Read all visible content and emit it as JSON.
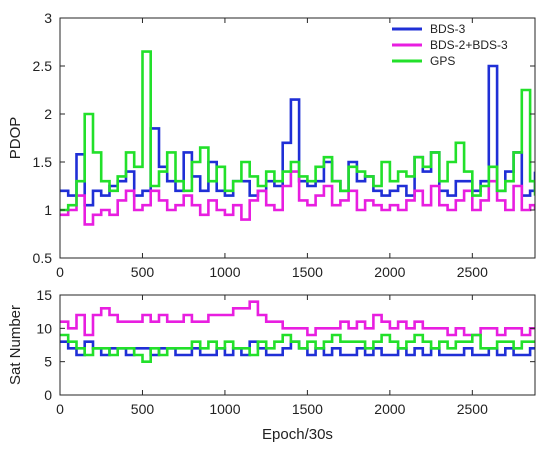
{
  "chart_data": [
    {
      "type": "line",
      "title": "",
      "xlabel": "",
      "ylabel": "PDOP",
      "xlim": [
        0,
        2880
      ],
      "ylim": [
        0.5,
        3
      ],
      "xticks": [
        0,
        500,
        1000,
        1500,
        2000,
        2500
      ],
      "yticks": [
        0.5,
        1,
        1.5,
        2,
        2.5,
        3
      ],
      "grid": false,
      "legend_position": "top-right",
      "series": [
        {
          "name": "BDS-3",
          "color": "#1f2fd6",
          "x": [
            0,
            50,
            100,
            150,
            200,
            250,
            300,
            350,
            400,
            450,
            500,
            550,
            600,
            650,
            700,
            750,
            800,
            850,
            900,
            950,
            1000,
            1050,
            1100,
            1150,
            1200,
            1250,
            1300,
            1350,
            1400,
            1450,
            1500,
            1550,
            1600,
            1650,
            1700,
            1750,
            1800,
            1850,
            1900,
            1950,
            2000,
            2050,
            2100,
            2150,
            2200,
            2250,
            2300,
            2350,
            2400,
            2450,
            2500,
            2550,
            2600,
            2650,
            2700,
            2750,
            2800,
            2850,
            2880
          ],
          "values": [
            1.2,
            1.15,
            1.58,
            1.05,
            1.2,
            1.15,
            1.25,
            1.3,
            1.4,
            1.15,
            1.2,
            1.85,
            1.45,
            1.3,
            1.2,
            1.6,
            1.35,
            1.2,
            1.5,
            1.2,
            1.15,
            1.3,
            1.3,
            1.15,
            1.2,
            1.3,
            1.25,
            1.7,
            2.15,
            1.3,
            1.25,
            1.3,
            1.5,
            1.3,
            1.2,
            1.5,
            1.3,
            1.35,
            1.2,
            1.15,
            1.2,
            1.25,
            1.15,
            1.55,
            1.4,
            1.6,
            1.2,
            1.15,
            1.3,
            1.3,
            1.2,
            1.3,
            2.5,
            1.2,
            1.4,
            1.6,
            1.15,
            1.2,
            1.4
          ]
        },
        {
          "name": "BDS-2+BDS-3",
          "color": "#e81ee0",
          "x": [
            0,
            50,
            100,
            150,
            200,
            250,
            300,
            350,
            400,
            450,
            500,
            550,
            600,
            650,
            700,
            750,
            800,
            850,
            900,
            950,
            1000,
            1050,
            1100,
            1150,
            1200,
            1250,
            1300,
            1350,
            1400,
            1450,
            1500,
            1550,
            1600,
            1650,
            1700,
            1750,
            1800,
            1850,
            1900,
            1950,
            2000,
            2050,
            2100,
            2150,
            2200,
            2250,
            2300,
            2350,
            2400,
            2450,
            2500,
            2550,
            2600,
            2650,
            2700,
            2750,
            2800,
            2850,
            2880
          ],
          "values": [
            0.95,
            1.0,
            1.15,
            0.85,
            0.95,
            1.0,
            0.95,
            1.1,
            1.2,
            1.0,
            1.05,
            1.2,
            1.1,
            1.0,
            1.05,
            1.15,
            1.05,
            0.95,
            1.1,
            1.0,
            0.95,
            1.05,
            0.9,
            1.1,
            1.2,
            1.05,
            1.0,
            1.25,
            1.4,
            1.1,
            1.05,
            1.15,
            1.25,
            1.05,
            1.1,
            1.2,
            1.0,
            1.1,
            1.05,
            1.0,
            1.05,
            1.0,
            1.1,
            1.2,
            1.05,
            1.25,
            1.05,
            1.0,
            1.1,
            1.2,
            1.0,
            1.1,
            1.3,
            1.1,
            1.0,
            1.25,
            1.0,
            1.05,
            1.0
          ]
        },
        {
          "name": "GPS",
          "color": "#22e02a",
          "x": [
            0,
            50,
            100,
            150,
            200,
            250,
            300,
            350,
            400,
            450,
            500,
            550,
            600,
            650,
            700,
            750,
            800,
            850,
            900,
            950,
            1000,
            1050,
            1100,
            1150,
            1200,
            1250,
            1300,
            1350,
            1400,
            1450,
            1500,
            1550,
            1600,
            1650,
            1700,
            1750,
            1800,
            1850,
            1900,
            1950,
            2000,
            2050,
            2100,
            2150,
            2200,
            2250,
            2300,
            2350,
            2400,
            2450,
            2500,
            2550,
            2600,
            2650,
            2700,
            2750,
            2800,
            2850,
            2880
          ],
          "values": [
            1.0,
            1.05,
            1.3,
            2.0,
            1.6,
            1.3,
            1.2,
            1.35,
            1.6,
            1.45,
            2.65,
            1.25,
            1.4,
            1.6,
            1.3,
            1.2,
            1.5,
            1.65,
            1.3,
            1.45,
            1.2,
            1.3,
            1.5,
            1.35,
            1.25,
            1.4,
            1.3,
            1.4,
            1.5,
            1.35,
            1.3,
            1.45,
            1.55,
            1.3,
            1.2,
            1.45,
            1.4,
            1.35,
            1.25,
            1.5,
            1.3,
            1.4,
            1.35,
            1.55,
            1.45,
            1.6,
            1.3,
            1.5,
            1.7,
            1.4,
            1.15,
            1.25,
            1.45,
            1.2,
            1.3,
            1.6,
            2.25,
            1.3,
            1.15
          ]
        }
      ]
    },
    {
      "type": "line",
      "title": "",
      "xlabel": "Epoch/30s",
      "ylabel": "Sat Number",
      "xlim": [
        0,
        2880
      ],
      "ylim": [
        0,
        15
      ],
      "xticks": [
        0,
        500,
        1000,
        1500,
        2000,
        2500
      ],
      "yticks": [
        0,
        5,
        10,
        15
      ],
      "grid": false,
      "series": [
        {
          "name": "BDS-3",
          "color": "#1f2fd6",
          "x": [
            0,
            50,
            100,
            150,
            200,
            250,
            300,
            350,
            400,
            450,
            500,
            550,
            600,
            650,
            700,
            750,
            800,
            850,
            900,
            950,
            1000,
            1050,
            1100,
            1150,
            1200,
            1250,
            1300,
            1350,
            1400,
            1450,
            1500,
            1550,
            1600,
            1650,
            1700,
            1750,
            1800,
            1850,
            1900,
            1950,
            2000,
            2050,
            2100,
            2150,
            2200,
            2250,
            2300,
            2350,
            2400,
            2450,
            2500,
            2550,
            2600,
            2650,
            2700,
            2750,
            2800,
            2850,
            2880
          ],
          "values": [
            8,
            7,
            6,
            8,
            7,
            6,
            7,
            7,
            6,
            7,
            7,
            6,
            7,
            7,
            6,
            6,
            7,
            6,
            6,
            7,
            6,
            7,
            6,
            8,
            7,
            6,
            6,
            7,
            8,
            7,
            6,
            7,
            6,
            7,
            6,
            6,
            7,
            6,
            7,
            6,
            6,
            7,
            6,
            7,
            6,
            7,
            6,
            6,
            6,
            7,
            6,
            6,
            7,
            6,
            7,
            6,
            6,
            7,
            7
          ]
        },
        {
          "name": "BDS-2+BDS-3",
          "color": "#e81ee0",
          "x": [
            0,
            50,
            100,
            150,
            200,
            250,
            300,
            350,
            400,
            450,
            500,
            550,
            600,
            650,
            700,
            750,
            800,
            850,
            900,
            950,
            1000,
            1050,
            1100,
            1150,
            1200,
            1250,
            1300,
            1350,
            1400,
            1450,
            1500,
            1550,
            1600,
            1650,
            1700,
            1750,
            1800,
            1850,
            1900,
            1950,
            2000,
            2050,
            2100,
            2150,
            2200,
            2250,
            2300,
            2350,
            2400,
            2450,
            2500,
            2550,
            2600,
            2650,
            2700,
            2750,
            2800,
            2850,
            2880
          ],
          "values": [
            11,
            10,
            12,
            9,
            12,
            13,
            12,
            11,
            11,
            11,
            12,
            11,
            12,
            11,
            11,
            12,
            11,
            11,
            12,
            12,
            12,
            13,
            13,
            14,
            12,
            11,
            11,
            10,
            10,
            10,
            9,
            10,
            10,
            10,
            11,
            10,
            11,
            10,
            12,
            11,
            10,
            11,
            10,
            11,
            10,
            10,
            10,
            9,
            10,
            9,
            9,
            10,
            10,
            9,
            10,
            10,
            9,
            10,
            10
          ]
        },
        {
          "name": "GPS",
          "color": "#22e02a",
          "x": [
            0,
            50,
            100,
            150,
            200,
            250,
            300,
            350,
            400,
            450,
            500,
            550,
            600,
            650,
            700,
            750,
            800,
            850,
            900,
            950,
            1000,
            1050,
            1100,
            1150,
            1200,
            1250,
            1300,
            1350,
            1400,
            1450,
            1500,
            1550,
            1600,
            1650,
            1700,
            1750,
            1800,
            1850,
            1900,
            1950,
            2000,
            2050,
            2100,
            2150,
            2200,
            2250,
            2300,
            2350,
            2400,
            2450,
            2500,
            2550,
            2600,
            2650,
            2700,
            2750,
            2800,
            2850,
            2880
          ],
          "values": [
            9,
            8,
            7,
            6,
            7,
            7,
            6,
            7,
            7,
            6,
            5,
            7,
            6,
            7,
            7,
            7,
            8,
            7,
            8,
            7,
            8,
            7,
            7,
            6,
            8,
            7,
            8,
            9,
            8,
            7,
            8,
            7,
            8,
            9,
            8,
            8,
            8,
            7,
            8,
            9,
            8,
            7,
            8,
            9,
            8,
            7,
            8,
            7,
            8,
            8,
            9,
            7,
            7,
            8,
            8,
            7,
            8,
            8,
            8
          ]
        }
      ]
    }
  ]
}
